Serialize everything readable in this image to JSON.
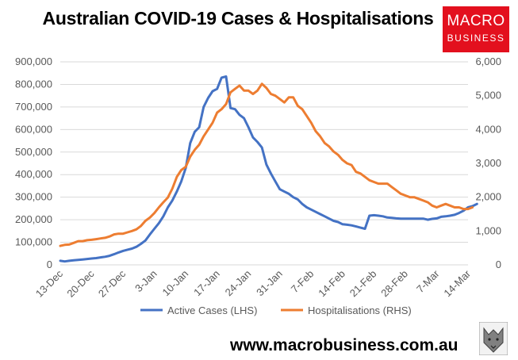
{
  "title": "Australian COVID-19 Cases & Hospitalisations",
  "logo": {
    "line1": "MACRO",
    "line2": "BUSINESS"
  },
  "footer": "www.macrobusiness.com.au",
  "colors": {
    "active": "#4472c4",
    "hosp": "#ed7d31",
    "logo": "#e3101e"
  },
  "chart_data": {
    "type": "line",
    "title": "Australian COVID-19 Cases & Hospitalisations",
    "x_start_day": 0,
    "x_end_day": 91,
    "x_ticks": [
      {
        "day": 0,
        "label": "13-Dec"
      },
      {
        "day": 7,
        "label": "20-Dec"
      },
      {
        "day": 14,
        "label": "27-Dec"
      },
      {
        "day": 21,
        "label": "3-Jan"
      },
      {
        "day": 28,
        "label": "10-Jan"
      },
      {
        "day": 35,
        "label": "17-Jan"
      },
      {
        "day": 42,
        "label": "24-Jan"
      },
      {
        "day": 49,
        "label": "31-Jan"
      },
      {
        "day": 56,
        "label": "7-Feb"
      },
      {
        "day": 63,
        "label": "14-Feb"
      },
      {
        "day": 70,
        "label": "21-Feb"
      },
      {
        "day": 77,
        "label": "28-Feb"
      },
      {
        "day": 84,
        "label": "7-Mar"
      },
      {
        "day": 91,
        "label": "14-Mar"
      }
    ],
    "y_left": {
      "min": 0,
      "max": 900000,
      "ticks": [
        "0",
        "100,000",
        "200,000",
        "300,000",
        "400,000",
        "500,000",
        "600,000",
        "700,000",
        "800,000",
        "900,000"
      ]
    },
    "y_right": {
      "min": 0,
      "max": 6000,
      "ticks": [
        "0",
        "1,000",
        "2,000",
        "3,000",
        "4,000",
        "5,000",
        "6,000"
      ]
    },
    "series": [
      {
        "name": "Active Cases (LHS)",
        "axis": "left",
        "color": "#4472c4",
        "start_day": 0,
        "values": [
          18000,
          15000,
          18000,
          20000,
          22000,
          24000,
          26000,
          28000,
          30000,
          33000,
          36000,
          40000,
          47000,
          55000,
          62000,
          67000,
          72000,
          80000,
          93000,
          108000,
          135000,
          160000,
          185000,
          215000,
          255000,
          285000,
          325000,
          370000,
          430000,
          540000,
          590000,
          610000,
          700000,
          740000,
          770000,
          780000,
          830000,
          835000,
          695000,
          690000,
          665000,
          650000,
          610000,
          565000,
          545000,
          520000,
          445000,
          405000,
          370000,
          335000,
          325000,
          315000,
          300000,
          290000,
          270000,
          255000,
          245000,
          235000,
          225000,
          215000,
          205000,
          195000,
          190000,
          180000,
          178000,
          175000,
          170000,
          165000,
          160000,
          218000,
          220000,
          218000,
          215000,
          210000,
          208000,
          206000,
          205000,
          205000,
          205000,
          205000,
          205000,
          205000,
          200000,
          204000,
          206000,
          213000,
          215000,
          218000,
          222000,
          230000,
          240000,
          255000,
          260000,
          270000
        ]
      },
      {
        "name": "Hospitalisations (RHS)",
        "axis": "right",
        "color": "#ed7d31",
        "start_day": 0,
        "values": [
          560,
          590,
          600,
          650,
          700,
          700,
          730,
          740,
          760,
          780,
          800,
          840,
          900,
          920,
          920,
          960,
          1000,
          1050,
          1150,
          1300,
          1400,
          1530,
          1700,
          1850,
          1990,
          2250,
          2600,
          2800,
          2900,
          3200,
          3400,
          3550,
          3800,
          4000,
          4200,
          4500,
          4600,
          4750,
          5100,
          5200,
          5300,
          5150,
          5150,
          5050,
          5150,
          5350,
          5230,
          5050,
          5000,
          4900,
          4800,
          4950,
          4950,
          4700,
          4600,
          4400,
          4200,
          3950,
          3800,
          3600,
          3500,
          3350,
          3250,
          3100,
          3000,
          2950,
          2750,
          2700,
          2600,
          2500,
          2450,
          2400,
          2400,
          2400,
          2300,
          2200,
          2100,
          2050,
          2000,
          2000,
          1950,
          1900,
          1850,
          1750,
          1700,
          1750,
          1800,
          1750,
          1700,
          1700,
          1650,
          1650,
          1700
        ]
      }
    ]
  }
}
